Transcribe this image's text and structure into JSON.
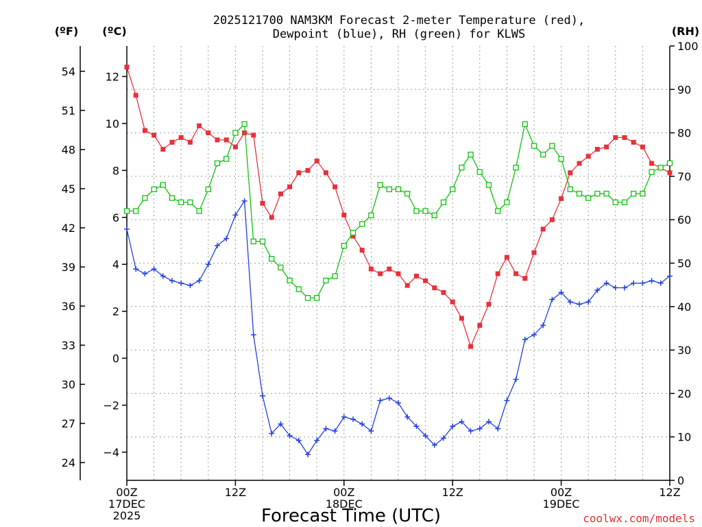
{
  "title_line1": "2025121700 NAM3KM Forecast 2-meter Temperature (red),",
  "title_line2": "Dewpoint (blue), RH (green) for KLWS",
  "unit_f": "(ºF)",
  "unit_c": "(ºC)",
  "unit_rh": "(RH)",
  "credit": "coolwx.com/models",
  "colors": {
    "temperature": "#e8303a",
    "dewpoint": "#2040e0",
    "rh": "#10c010"
  },
  "chart_data": {
    "type": "line",
    "title": "2025121700 NAM3KM Forecast 2-meter Temperature (red), Dewpoint (blue), RH (green) for KLWS",
    "xlabel": "Forecast Time (UTC)",
    "x": [
      0,
      1,
      2,
      3,
      4,
      5,
      6,
      7,
      8,
      9,
      10,
      11,
      12,
      13,
      14,
      15,
      16,
      17,
      18,
      19,
      20,
      21,
      22,
      23,
      24,
      25,
      26,
      27,
      28,
      29,
      30,
      31,
      32,
      33,
      34,
      35,
      36,
      37,
      38,
      39,
      40,
      41,
      42,
      43,
      44,
      45,
      46,
      47,
      48,
      49,
      50,
      51,
      52,
      53,
      54,
      55,
      56,
      57,
      58,
      59,
      60
    ],
    "x_unit": "hours since 2025-12-17 00Z",
    "xlim": [
      0,
      60
    ],
    "x_ticks": [
      {
        "hour": 0,
        "lines": [
          "00Z",
          "17DEC",
          "2025"
        ]
      },
      {
        "hour": 12,
        "lines": [
          "12Z"
        ]
      },
      {
        "hour": 24,
        "lines": [
          "00Z",
          "18DEC"
        ]
      },
      {
        "hour": 36,
        "lines": [
          "12Z"
        ]
      },
      {
        "hour": 48,
        "lines": [
          "00Z",
          "19DEC"
        ]
      },
      {
        "hour": 60,
        "lines": [
          "12Z"
        ]
      }
    ],
    "y_left_c": {
      "label": "(ºC)",
      "lim": [
        -5.2,
        13.3
      ],
      "ticks": [
        12,
        10,
        8,
        6,
        4,
        2,
        0,
        -2,
        -4
      ],
      "tick_labels": [
        "12",
        "10",
        "8",
        "6",
        "4",
        "2",
        "0",
        "−2",
        "−4"
      ]
    },
    "y_left_f": {
      "label": "(ºF)",
      "ticks": [
        54,
        51,
        48,
        45,
        42,
        39,
        36,
        33,
        30,
        27,
        24
      ]
    },
    "y_right_rh": {
      "label": "(RH)",
      "lim": [
        0,
        100
      ],
      "ticks": [
        0,
        10,
        20,
        30,
        40,
        50,
        60,
        70,
        80,
        90,
        100
      ]
    },
    "grid": true,
    "series": [
      {
        "name": "Temperature (red)",
        "axis": "c",
        "marker": "filled-square",
        "values": [
          12.4,
          11.2,
          9.7,
          9.5,
          8.9,
          9.2,
          9.4,
          9.2,
          9.9,
          9.6,
          9.3,
          9.3,
          9.0,
          9.6,
          9.5,
          6.6,
          6.0,
          7.0,
          7.3,
          7.9,
          8.0,
          8.4,
          7.9,
          7.3,
          6.1,
          5.2,
          4.6,
          3.8,
          3.6,
          3.8,
          3.6,
          3.1,
          3.5,
          3.3,
          3.0,
          2.8,
          2.4,
          1.7,
          0.5,
          1.4,
          2.3,
          3.6,
          4.3,
          3.6,
          3.4,
          4.5,
          5.5,
          5.9,
          6.8,
          7.9,
          8.3,
          8.6,
          8.9,
          9.0,
          9.4,
          9.4,
          9.2,
          9.0,
          8.3,
          8.1,
          7.9
        ]
      },
      {
        "name": "Dewpoint (blue)",
        "axis": "c",
        "marker": "plus",
        "values": [
          5.5,
          3.8,
          3.6,
          3.8,
          3.5,
          3.3,
          3.2,
          3.1,
          3.3,
          4.0,
          4.8,
          5.1,
          6.1,
          6.7,
          1.0,
          -1.6,
          -3.2,
          -2.8,
          -3.3,
          -3.5,
          -4.1,
          -3.5,
          -3.0,
          -3.1,
          -2.5,
          -2.6,
          -2.8,
          -3.1,
          -1.8,
          -1.7,
          -1.9,
          -2.5,
          -2.9,
          -3.3,
          -3.7,
          -3.4,
          -2.9,
          -2.7,
          -3.1,
          -3.0,
          -2.7,
          -3.0,
          -1.8,
          -0.9,
          0.8,
          1.0,
          1.4,
          2.5,
          2.8,
          2.4,
          2.3,
          2.4,
          2.9,
          3.2,
          3.0,
          3.0,
          3.2,
          3.2,
          3.3,
          3.2,
          3.5
        ]
      },
      {
        "name": "RH (green)",
        "axis": "rh",
        "marker": "open-square",
        "values": [
          62,
          62,
          65,
          67,
          68,
          65,
          64,
          64,
          62,
          67,
          73,
          74,
          80,
          82,
          55,
          55,
          51,
          49,
          46,
          44,
          42,
          42,
          46,
          47,
          54,
          57,
          59,
          61,
          68,
          67,
          67,
          66,
          62,
          62,
          61,
          64,
          67,
          72,
          75,
          71,
          68,
          62,
          64,
          72,
          82,
          77,
          75,
          77,
          74,
          67,
          66,
          65,
          66,
          66,
          64,
          64,
          66,
          66,
          71,
          72,
          73
        ]
      }
    ]
  }
}
